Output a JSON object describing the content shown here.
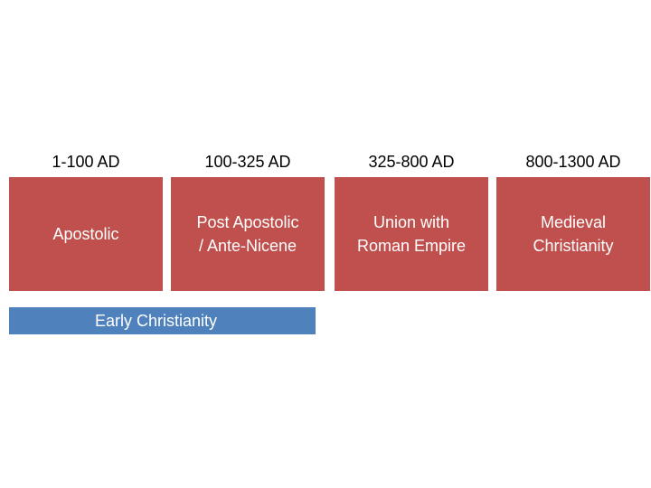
{
  "colors": {
    "period_box": "#c0504d",
    "era_bar": "#4f81bd"
  },
  "periods": [
    {
      "date": "1-100 AD",
      "label": "Apostolic"
    },
    {
      "date": "100-325 AD",
      "label": "Post Apostolic\n/ Ante-Nicene"
    },
    {
      "date": "325-800 AD",
      "label": "Union with\nRoman Empire"
    },
    {
      "date": "800-1300 AD",
      "label": "Medieval\nChristianity"
    }
  ],
  "era_bar": {
    "label": "Early Christianity"
  }
}
